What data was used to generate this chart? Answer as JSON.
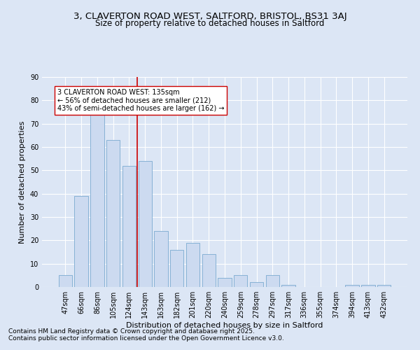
{
  "title1": "3, CLAVERTON ROAD WEST, SALTFORD, BRISTOL, BS31 3AJ",
  "title2": "Size of property relative to detached houses in Saltford",
  "xlabel": "Distribution of detached houses by size in Saltford",
  "ylabel": "Number of detached properties",
  "categories": [
    "47sqm",
    "66sqm",
    "86sqm",
    "105sqm",
    "124sqm",
    "143sqm",
    "163sqm",
    "182sqm",
    "201sqm",
    "220sqm",
    "240sqm",
    "259sqm",
    "278sqm",
    "297sqm",
    "317sqm",
    "336sqm",
    "355sqm",
    "374sqm",
    "394sqm",
    "413sqm",
    "432sqm"
  ],
  "values": [
    5,
    39,
    74,
    63,
    52,
    54,
    24,
    16,
    19,
    14,
    4,
    5,
    2,
    5,
    1,
    0,
    0,
    0,
    1,
    1,
    1
  ],
  "bar_color": "#ccdaf0",
  "bar_edge_color": "#7aaad0",
  "vline_x_idx": 4.5,
  "vline_color": "#cc0000",
  "annotation_text": "3 CLAVERTON ROAD WEST: 135sqm\n← 56% of detached houses are smaller (212)\n43% of semi-detached houses are larger (162) →",
  "annotation_box_color": "#ffffff",
  "annotation_box_edge": "#cc0000",
  "bg_color": "#dce6f5",
  "plot_bg_color": "#dce6f5",
  "footer1": "Contains HM Land Registry data © Crown copyright and database right 2025.",
  "footer2": "Contains public sector information licensed under the Open Government Licence v3.0.",
  "ylim": [
    0,
    90
  ],
  "yticks": [
    0,
    10,
    20,
    30,
    40,
    50,
    60,
    70,
    80,
    90
  ],
  "grid_color": "#ffffff",
  "title_fontsize": 9.5,
  "subtitle_fontsize": 8.5,
  "axis_label_fontsize": 8,
  "tick_fontsize": 7,
  "annotation_fontsize": 7,
  "footer_fontsize": 6.5
}
